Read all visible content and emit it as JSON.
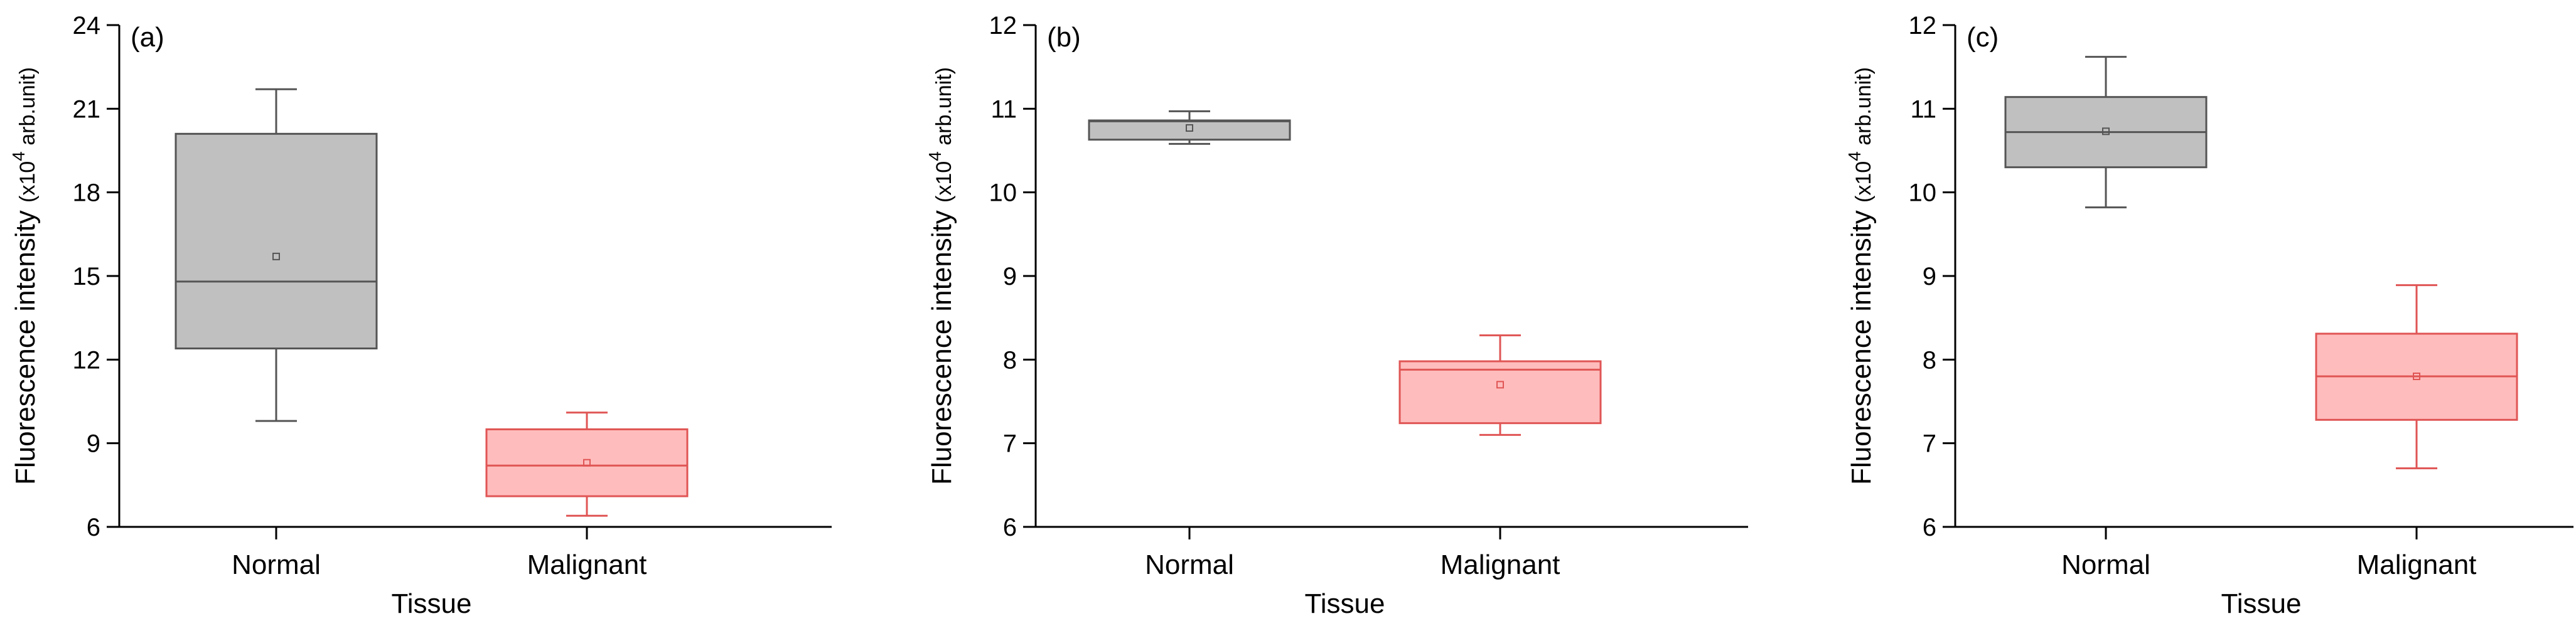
{
  "chart_data": [
    {
      "type": "box",
      "panel_label": "(a)",
      "xlabel": "Tissue",
      "ylabel_main": "Fluorescence intensity",
      "ylabel_prefix": "(x10",
      "ylabel_exp": "4",
      "ylabel_suffix": " arb.unit)",
      "ylim": [
        6,
        24
      ],
      "yticks": [
        6,
        9,
        12,
        15,
        18,
        21,
        24
      ],
      "ytick_labels": [
        "6",
        "9",
        "12",
        "15",
        "18",
        "21",
        "24"
      ],
      "categories": [
        "Normal",
        "Malignant"
      ],
      "boxes": [
        {
          "name": "Normal",
          "whisker_low": 9.8,
          "q1": 12.4,
          "median": 14.8,
          "q3": 20.1,
          "whisker_high": 21.7,
          "mean": 15.7
        },
        {
          "name": "Malignant",
          "whisker_low": 6.4,
          "q1": 7.1,
          "median": 8.2,
          "q3": 9.5,
          "whisker_high": 10.1,
          "mean": 8.3
        }
      ]
    },
    {
      "type": "box",
      "panel_label": "(b)",
      "xlabel": "Tissue",
      "ylabel_main": "Fluorescence intensity",
      "ylabel_prefix": "(x10",
      "ylabel_exp": "4",
      "ylabel_suffix": " arb.unit)",
      "ylim": [
        6,
        12
      ],
      "yticks": [
        6,
        7,
        8,
        9,
        10,
        11,
        12
      ],
      "ytick_labels": [
        "6",
        "7",
        "8",
        "9",
        "10",
        "11",
        "12"
      ],
      "categories": [
        "Normal",
        "Malignant"
      ],
      "boxes": [
        {
          "name": "Normal",
          "whisker_low": 10.58,
          "q1": 10.63,
          "median": 10.85,
          "q3": 10.86,
          "whisker_high": 10.97,
          "mean": 10.77
        },
        {
          "name": "Malignant",
          "whisker_low": 7.1,
          "q1": 7.24,
          "median": 7.88,
          "q3": 7.98,
          "whisker_high": 8.29,
          "mean": 7.7
        }
      ]
    },
    {
      "type": "box",
      "panel_label": "(c)",
      "xlabel": "Tissue",
      "ylabel_main": "Fluorescence intensity",
      "ylabel_prefix": "(x10",
      "ylabel_exp": "4",
      "ylabel_suffix": " arb.unit)",
      "ylim": [
        6,
        12
      ],
      "yticks": [
        6,
        7,
        8,
        9,
        10,
        11,
        12
      ],
      "ytick_labels": [
        "6",
        "7",
        "8",
        "9",
        "10",
        "11",
        "12"
      ],
      "categories": [
        "Normal",
        "Malignant"
      ],
      "boxes": [
        {
          "name": "Normal",
          "whisker_low": 9.82,
          "q1": 10.3,
          "median": 10.72,
          "q3": 11.14,
          "whisker_high": 11.62,
          "mean": 10.73
        },
        {
          "name": "Malignant",
          "whisker_low": 6.7,
          "q1": 7.28,
          "median": 7.8,
          "q3": 8.31,
          "whisker_high": 8.89,
          "mean": 7.8
        }
      ]
    }
  ],
  "colors": {
    "axis": "#000000",
    "normal_fill": "#c0c0c0",
    "normal_stroke": "#555555",
    "malignant_fill": "#ffbcbc",
    "malignant_stroke": "#e05555"
  }
}
